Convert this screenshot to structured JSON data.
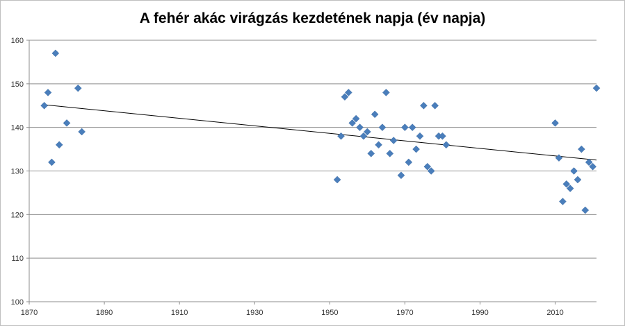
{
  "chart_data": {
    "type": "scatter",
    "title": "A fehér akác virágzás kezdetének napja (év napja)",
    "xlabel": "",
    "ylabel": "",
    "xlim": [
      1870,
      2021
    ],
    "ylim": [
      100,
      160
    ],
    "xticks": [
      1870,
      1890,
      1910,
      1930,
      1950,
      1970,
      1990,
      2010
    ],
    "yticks": [
      100,
      110,
      120,
      130,
      140,
      150,
      160
    ],
    "grid": "horizontal",
    "legend": "none",
    "marker": "diamond",
    "marker_color": "#4a7ebb",
    "trendline": {
      "type": "linear",
      "from": [
        1874,
        145.2
      ],
      "to": [
        2021,
        132.5
      ],
      "color": "#000000"
    },
    "series": [
      {
        "points": [
          [
            1874,
            145
          ],
          [
            1875,
            148
          ],
          [
            1876,
            132
          ],
          [
            1877,
            157
          ],
          [
            1878,
            136
          ],
          [
            1880,
            141
          ],
          [
            1883,
            149
          ],
          [
            1884,
            139
          ],
          [
            1952,
            128
          ],
          [
            1953,
            138
          ],
          [
            1954,
            147
          ],
          [
            1955,
            148
          ],
          [
            1956,
            141
          ],
          [
            1957,
            142
          ],
          [
            1958,
            140
          ],
          [
            1959,
            138
          ],
          [
            1960,
            139
          ],
          [
            1961,
            134
          ],
          [
            1962,
            143
          ],
          [
            1963,
            136
          ],
          [
            1964,
            140
          ],
          [
            1965,
            148
          ],
          [
            1966,
            134
          ],
          [
            1967,
            137
          ],
          [
            1969,
            129
          ],
          [
            1970,
            140
          ],
          [
            1971,
            132
          ],
          [
            1972,
            140
          ],
          [
            1973,
            135
          ],
          [
            1974,
            138
          ],
          [
            1975,
            145
          ],
          [
            1976,
            131
          ],
          [
            1977,
            130
          ],
          [
            1978,
            145
          ],
          [
            1979,
            138
          ],
          [
            1980,
            138
          ],
          [
            1981,
            136
          ],
          [
            2010,
            141
          ],
          [
            2011,
            133
          ],
          [
            2012,
            123
          ],
          [
            2013,
            127
          ],
          [
            2014,
            126
          ],
          [
            2015,
            130
          ],
          [
            2016,
            128
          ],
          [
            2017,
            135
          ],
          [
            2018,
            121
          ],
          [
            2019,
            132
          ],
          [
            2020,
            131
          ],
          [
            2021,
            149
          ]
        ]
      }
    ]
  }
}
